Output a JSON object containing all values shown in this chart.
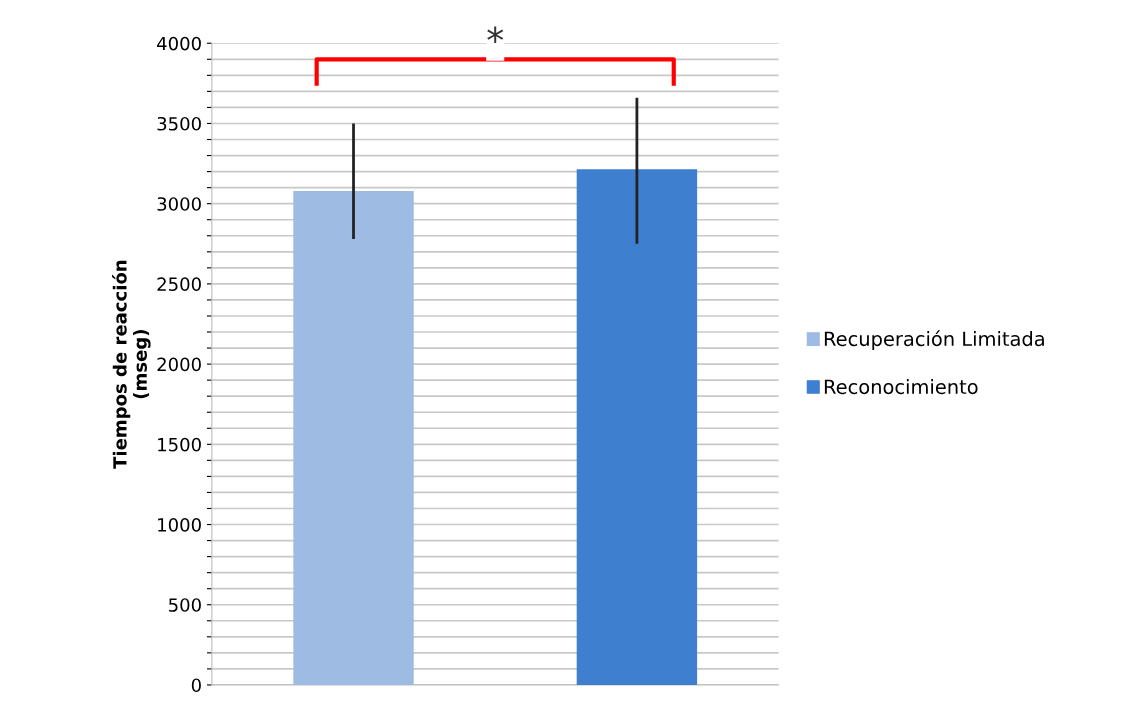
{
  "chart_data": {
    "type": "bar",
    "ylabel": "Tiempos de reacción\n(mseg)",
    "categories": [
      null,
      null
    ],
    "series": [
      {
        "name": "Recuperación Limitada",
        "color": "#9dbbe3",
        "values": [
          3075,
          null
        ],
        "errors": [
          [
            2780,
            3500
          ],
          null
        ]
      },
      {
        "name": "Reconocimiento",
        "color": "#3f7fcf",
        "values": [
          null,
          3210
        ],
        "errors": [
          null,
          [
            2750,
            3660
          ]
        ]
      }
    ],
    "ylim": [
      0,
      4000
    ],
    "yticks": [
      0,
      {
        "value": 100,
        "label": null
      },
      {
        "value": 200,
        "label": null
      },
      {
        "value": 300,
        "label": null
      },
      {
        "value": 400,
        "label": null
      },
      500,
      {
        "value": 600,
        "label": null
      },
      {
        "value": 700,
        "label": null
      },
      {
        "value": 800,
        "label": null
      },
      {
        "value": 900,
        "label": null
      },
      1000,
      {
        "value": 1100,
        "label": null
      },
      {
        "value": 1200,
        "label": null
      },
      {
        "value": 1300,
        "label": null
      },
      {
        "value": 1400,
        "label": null
      },
      1500,
      {
        "value": 1600,
        "label": null
      },
      {
        "value": 1700,
        "label": null
      },
      {
        "value": 1800,
        "label": null
      },
      {
        "value": 1900,
        "label": null
      },
      2000,
      {
        "value": 2100,
        "label": null
      },
      {
        "value": 2200,
        "label": null
      },
      {
        "value": 2300,
        "label": null
      },
      {
        "value": 2400,
        "label": null
      },
      2500,
      {
        "value": 2600,
        "label": null
      },
      {
        "value": 2700,
        "label": null
      },
      {
        "value": 2800,
        "label": null
      },
      {
        "value": 2900,
        "label": null
      },
      3000,
      {
        "value": 3100,
        "label": null
      },
      {
        "value": 3200,
        "label": null
      },
      {
        "value": 3300,
        "label": null
      },
      {
        "value": 3400,
        "label": null
      },
      3500,
      {
        "value": 3600,
        "label": null
      },
      {
        "value": 3700,
        "label": null
      },
      {
        "value": 3800,
        "label": null
      },
      {
        "value": 3900,
        "label": null
      },
      4000
    ],
    "grid": "y",
    "legend": "right",
    "annotations": [
      "*"
    ]
  }
}
